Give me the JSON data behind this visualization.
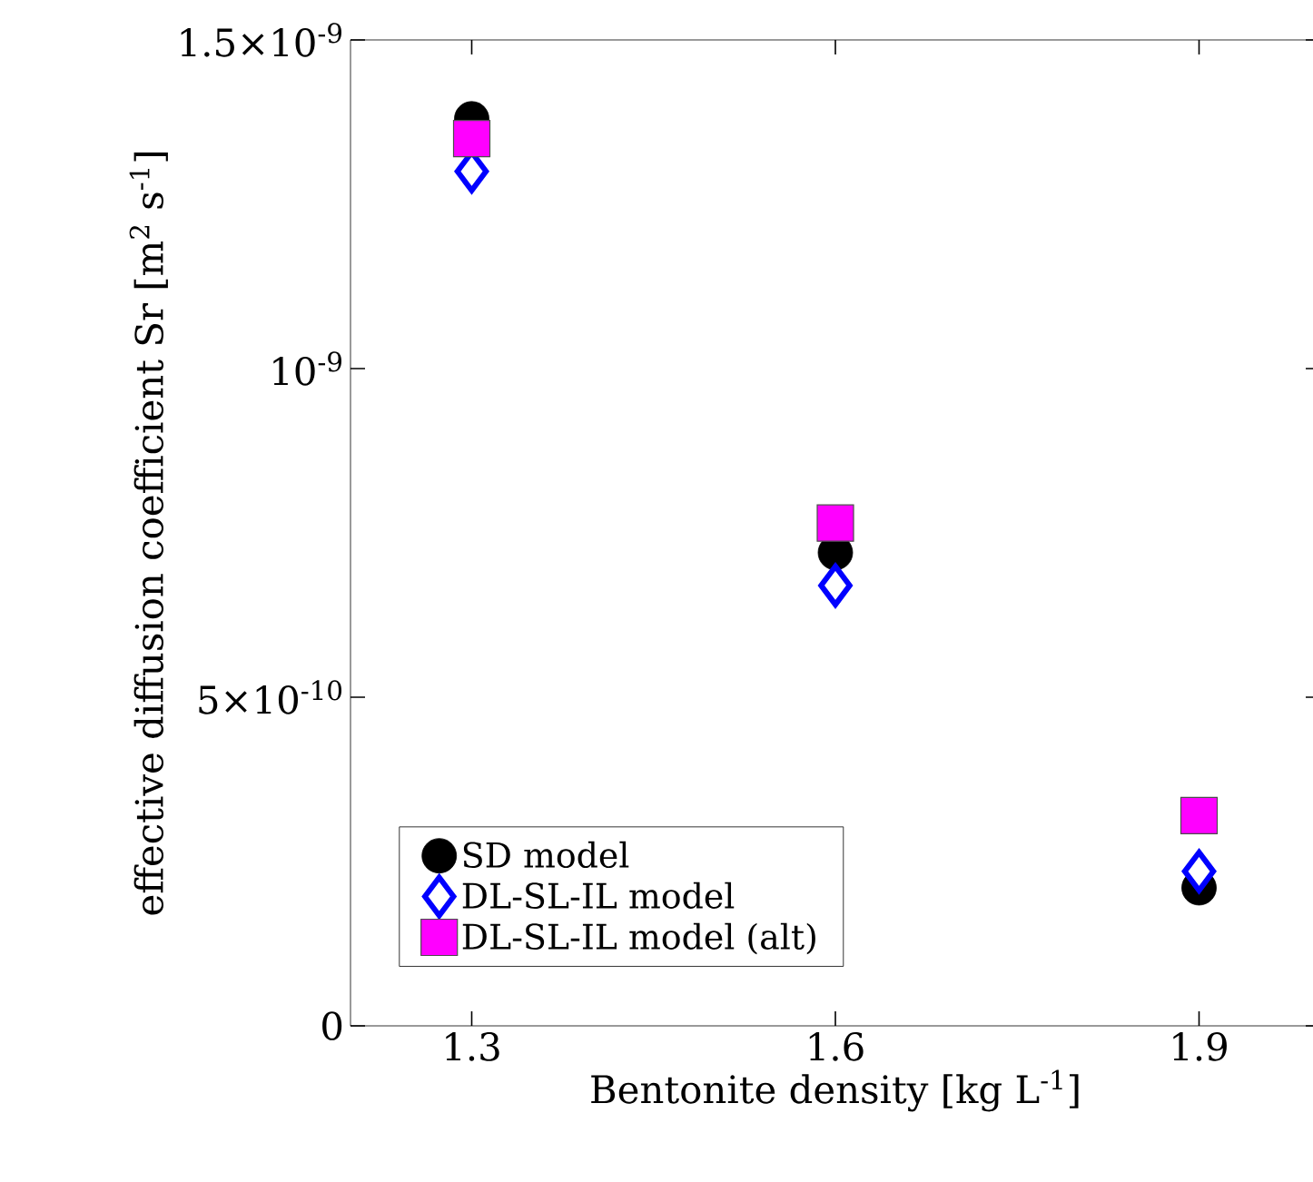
{
  "chart_data": {
    "type": "scatter",
    "xlabel": "Bentonite density [kg L$^{-1}$]",
    "ylabel": "effective diffusion coefficient Sr [m$^{2}$ s$^{-1}$]",
    "x": [
      1.3,
      1.6,
      1.9
    ],
    "xlim": [
      1.2,
      2.0
    ],
    "xticks": [
      1.3,
      1.6,
      1.9
    ],
    "ylim": [
      0,
      1.5e-09
    ],
    "yticks": [
      0,
      {
        "value": 5e-10,
        "label": "5×10$^{-10}$"
      },
      {
        "value": 1e-09,
        "label": "10$^{-9}$"
      },
      {
        "value": 1.5e-09,
        "label": "1.5×10$^{-9}$"
      }
    ],
    "legend": "bottom left",
    "grid": false,
    "series": [
      {
        "name": "SD model",
        "color": "#000000",
        "marker": "circle",
        "values": [
          1.38e-09,
          7.2e-10,
          2.1e-10
        ]
      },
      {
        "name": "DL-SL-IL model",
        "color": "#0000ff",
        "marker": "diamond",
        "values": [
          1.3e-09,
          6.7e-10,
          2.35e-10
        ]
      },
      {
        "name": "DL-SL-IL model (alt)",
        "color": "#ff00ff",
        "marker": "square",
        "values": [
          1.35e-09,
          7.65e-10,
          3.2e-10
        ]
      }
    ]
  }
}
